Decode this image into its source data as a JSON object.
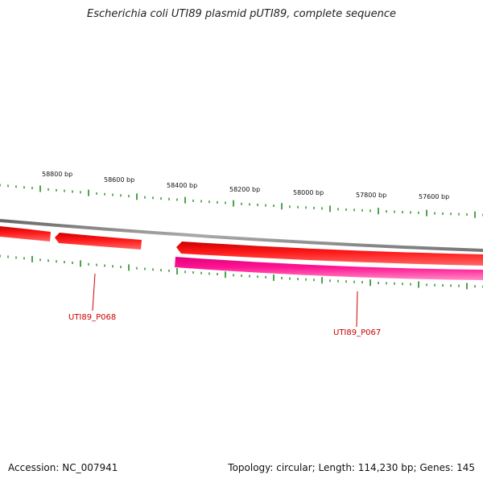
{
  "title": "Escherichia coli UTI89 plasmid pUTI89, complete sequence",
  "accession": "Accession: NC_007941",
  "summary": "Topology: circular; Length: 114,230 bp; Genes: 145",
  "tick_labels": [
    "58800 bp",
    "58600 bp",
    "58400 bp",
    "58200 bp",
    "58000 bp",
    "57800 bp",
    "57600 bp"
  ],
  "genes": [
    {
      "label": "UTI89_P068"
    },
    {
      "label": "UTI89_P067"
    }
  ],
  "colors": {
    "backbone": "#8a8a8a",
    "forward_gene": "#ff0000",
    "reverse_gene": "#ff1493",
    "ticks": "#228b22",
    "gene_label": "#cc0000"
  }
}
